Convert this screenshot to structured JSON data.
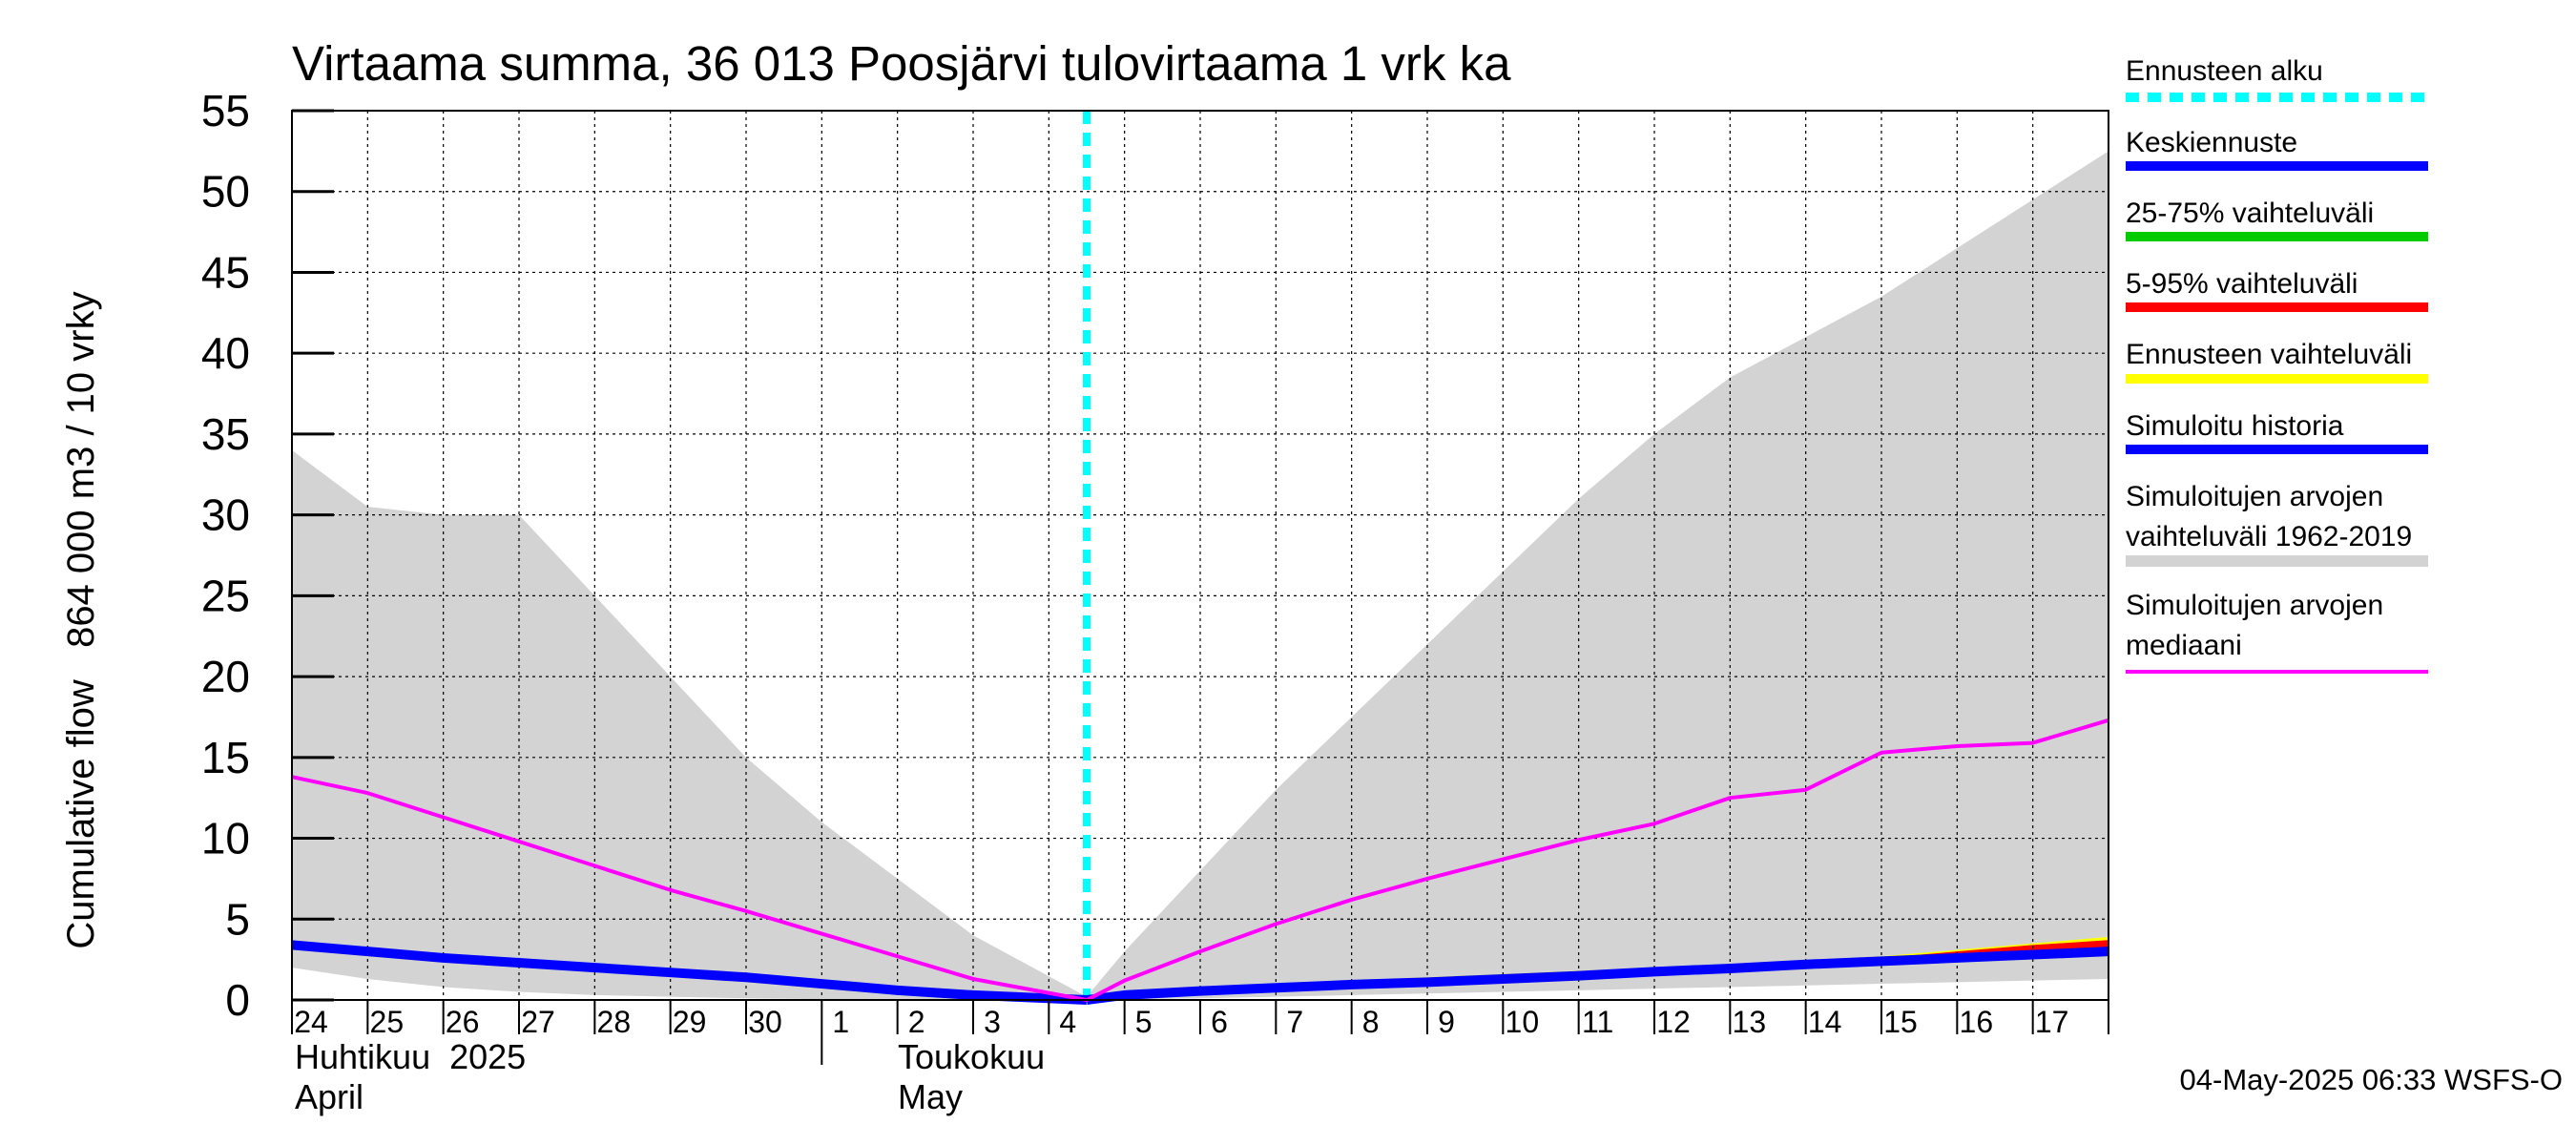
{
  "chart_data": {
    "type": "area",
    "title": "Virtaama summa, 36 013 Poosjärvi tulovirtaama 1 vrk ka",
    "ylabel": "Cumulative flow   864 000 m3 / 10 vrky",
    "ylim": [
      0,
      55
    ],
    "yticks": [
      0,
      5,
      10,
      15,
      20,
      25,
      30,
      35,
      40,
      45,
      50,
      55
    ],
    "grid": true,
    "x_ticks": [
      "24",
      "25",
      "26",
      "27",
      "28",
      "29",
      "30",
      "1",
      "2",
      "3",
      "4",
      "5",
      "6",
      "7",
      "8",
      "9",
      "10",
      "11",
      "12",
      "13",
      "14",
      "15",
      "16",
      "17"
    ],
    "months": [
      {
        "fi": "Huhtikuu  2025",
        "en": "April"
      },
      {
        "fi": "Toukokuu",
        "en": "May"
      }
    ],
    "forecast_start_day": 10.5,
    "series": [
      {
        "name": "Simuloitujen arvojen vaihteluväli 1962-2019",
        "kind": "band",
        "color": "#d3d3d3",
        "x": [
          0,
          1,
          2,
          3,
          4,
          5,
          6,
          7,
          8,
          9,
          10.5,
          11,
          12,
          13,
          14,
          15,
          16,
          17,
          18,
          19,
          20,
          21,
          22,
          23,
          24
        ],
        "upper": [
          34.0,
          30.5,
          30.0,
          30.0,
          25.0,
          20.0,
          15.0,
          11.0,
          7.5,
          4.0,
          0.2,
          3.0,
          8.0,
          13.0,
          17.5,
          22.0,
          26.5,
          31.0,
          35.0,
          38.5,
          41.0,
          43.5,
          46.5,
          49.5,
          52.5
        ],
        "lower": [
          2.0,
          1.3,
          0.8,
          0.5,
          0.3,
          0.2,
          0.1,
          0.05,
          0.0,
          0.0,
          0.0,
          0.05,
          0.1,
          0.2,
          0.3,
          0.4,
          0.5,
          0.6,
          0.7,
          0.8,
          0.9,
          1.0,
          1.1,
          1.2,
          1.3
        ]
      },
      {
        "name": "Ennusteen vaihteluväli",
        "kind": "band",
        "color": "#ffff00",
        "x": [
          10.5,
          14,
          18,
          20,
          21,
          22,
          23,
          24
        ],
        "upper": [
          0.1,
          1.2,
          2.0,
          2.4,
          2.7,
          3.1,
          3.5,
          3.9
        ],
        "lower": [
          0.0,
          0.9,
          1.6,
          2.1,
          2.3,
          2.5,
          2.6,
          2.7
        ]
      },
      {
        "name": "5-95% vaihteluväli",
        "kind": "band",
        "color": "#ff0000",
        "x": [
          10.5,
          14,
          18,
          20,
          21,
          22,
          23,
          24
        ],
        "upper": [
          0.05,
          1.1,
          1.9,
          2.3,
          2.6,
          3.0,
          3.4,
          3.7
        ],
        "lower": [
          0.0,
          0.95,
          1.7,
          2.15,
          2.35,
          2.55,
          2.65,
          2.75
        ]
      },
      {
        "name": "25-75% vaihteluväli",
        "kind": "band",
        "color": "#00cc00",
        "x": [
          10.5,
          14,
          18,
          20,
          21,
          22,
          23,
          24
        ],
        "upper": [
          0.03,
          1.05,
          1.85,
          2.25,
          2.5,
          2.8,
          3.0,
          3.2
        ],
        "lower": [
          0.0,
          1.0,
          1.75,
          2.2,
          2.4,
          2.6,
          2.7,
          2.8
        ]
      },
      {
        "name": "Simuloitu historia",
        "kind": "line",
        "color": "#0000ff",
        "x": [
          0,
          1,
          2,
          3,
          4,
          5,
          6,
          7,
          8,
          9,
          10.5
        ],
        "y": [
          3.4,
          3.0,
          2.6,
          2.3,
          2.0,
          1.7,
          1.4,
          1.0,
          0.6,
          0.3,
          0.0
        ]
      },
      {
        "name": "Keskiennuste",
        "kind": "line",
        "color": "#0000ff",
        "x": [
          10.5,
          11,
          12,
          13,
          14,
          15,
          16,
          17,
          18,
          19,
          20,
          21,
          22,
          23,
          24
        ],
        "y": [
          0.0,
          0.3,
          0.55,
          0.75,
          0.95,
          1.1,
          1.3,
          1.5,
          1.75,
          1.95,
          2.2,
          2.4,
          2.6,
          2.8,
          3.0
        ]
      },
      {
        "name": "Simuloitujen arvojen mediaani",
        "kind": "line",
        "color": "#ff00ff",
        "x": [
          0,
          1,
          2,
          3,
          4,
          5,
          6,
          7,
          8,
          9,
          10.5,
          11,
          12,
          13,
          14,
          15,
          16,
          17,
          18,
          19,
          20,
          21,
          22,
          23,
          24
        ],
        "y": [
          13.8,
          12.8,
          11.3,
          9.8,
          8.3,
          6.8,
          5.5,
          4.1,
          2.7,
          1.3,
          0.0,
          1.2,
          3.0,
          4.7,
          6.2,
          7.5,
          8.7,
          9.9,
          10.9,
          12.5,
          13.0,
          15.3,
          15.7,
          15.9,
          17.3
        ]
      }
    ],
    "legend": [
      {
        "label": "Ennusteen alku",
        "color": "#00ffff",
        "style": "dashed"
      },
      {
        "label": "Keskiennuste",
        "color": "#0000ff",
        "style": "solid"
      },
      {
        "label": "25-75% vaihteluväli",
        "color": "#00cc00",
        "style": "solid"
      },
      {
        "label": "5-95% vaihteluväli",
        "color": "#ff0000",
        "style": "solid"
      },
      {
        "label": "Ennusteen vaihteluväli",
        "color": "#ffff00",
        "style": "solid"
      },
      {
        "label": "Simuloitu historia",
        "color": "#0000ff",
        "style": "solid"
      },
      {
        "label": "Simuloitujen arvojen\nvaihteluväli 1962-2019",
        "color": "#d3d3d3",
        "style": "solid"
      },
      {
        "label": "Simuloitujen arvojen\nmediaani",
        "color": "#ff00ff",
        "style": "solid"
      }
    ],
    "legend_position": "right"
  },
  "footer": {
    "timestamp": "04-May-2025 06:33 WSFS-O"
  }
}
